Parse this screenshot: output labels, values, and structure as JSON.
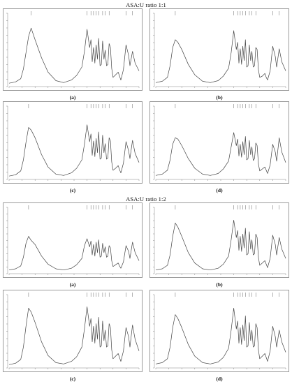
{
  "sections": [
    {
      "title": "ASA:U ratio 1:1"
    },
    {
      "title": "ASA:U ratio 1:2"
    }
  ],
  "panel_labels": [
    "(a)",
    "(b)",
    "(c)",
    "(d)"
  ],
  "colors": {
    "trace": "#444444",
    "frame": "#9a9a9a",
    "tick": "#666666"
  },
  "chart_data": [
    {
      "type": "line",
      "section": "ASA:U ratio 1:1",
      "label": "(a)",
      "x": [
        0.0,
        0.05,
        0.09,
        0.11,
        0.13,
        0.15,
        0.17,
        0.2,
        0.25,
        0.3,
        0.36,
        0.42,
        0.48,
        0.52,
        0.56,
        0.58,
        0.6,
        0.62,
        0.63,
        0.64,
        0.65,
        0.66,
        0.67,
        0.68,
        0.69,
        0.7,
        0.71,
        0.72,
        0.73,
        0.74,
        0.75,
        0.76,
        0.77,
        0.78,
        0.79,
        0.8,
        0.82,
        0.84,
        0.85,
        0.86,
        0.88,
        0.9,
        0.92,
        0.93,
        0.95,
        0.97,
        1.0
      ],
      "y": [
        0.03,
        0.05,
        0.1,
        0.25,
        0.5,
        0.75,
        0.88,
        0.7,
        0.42,
        0.2,
        0.07,
        0.04,
        0.08,
        0.15,
        0.28,
        0.52,
        0.86,
        0.58,
        0.7,
        0.36,
        0.58,
        0.34,
        0.62,
        0.4,
        0.72,
        0.3,
        0.32,
        0.68,
        0.4,
        0.54,
        0.3,
        0.32,
        0.64,
        0.58,
        0.26,
        0.12,
        0.16,
        0.2,
        0.14,
        0.08,
        0.24,
        0.62,
        0.46,
        0.3,
        0.52,
        0.34,
        0.22
      ]
    },
    {
      "type": "line",
      "section": "ASA:U ratio 1:1",
      "label": "(b)",
      "x": [
        0.0,
        0.05,
        0.09,
        0.11,
        0.13,
        0.15,
        0.17,
        0.2,
        0.25,
        0.3,
        0.36,
        0.42,
        0.48,
        0.52,
        0.56,
        0.58,
        0.6,
        0.62,
        0.63,
        0.64,
        0.65,
        0.66,
        0.67,
        0.68,
        0.69,
        0.7,
        0.71,
        0.72,
        0.73,
        0.74,
        0.75,
        0.76,
        0.77,
        0.78,
        0.79,
        0.8,
        0.82,
        0.84,
        0.85,
        0.86,
        0.88,
        0.9,
        0.92,
        0.93,
        0.95,
        0.97,
        1.0
      ],
      "y": [
        0.04,
        0.06,
        0.12,
        0.3,
        0.58,
        0.7,
        0.66,
        0.55,
        0.32,
        0.16,
        0.06,
        0.04,
        0.07,
        0.14,
        0.26,
        0.5,
        0.84,
        0.55,
        0.66,
        0.34,
        0.56,
        0.32,
        0.6,
        0.38,
        0.7,
        0.28,
        0.3,
        0.62,
        0.38,
        0.52,
        0.28,
        0.3,
        0.58,
        0.55,
        0.24,
        0.12,
        0.14,
        0.18,
        0.12,
        0.08,
        0.22,
        0.6,
        0.44,
        0.28,
        0.56,
        0.36,
        0.22
      ]
    },
    {
      "type": "line",
      "section": "ASA:U ratio 1:1",
      "label": "(c)",
      "x": [
        0.0,
        0.05,
        0.09,
        0.11,
        0.13,
        0.15,
        0.17,
        0.2,
        0.25,
        0.3,
        0.36,
        0.42,
        0.48,
        0.52,
        0.56,
        0.58,
        0.6,
        0.62,
        0.63,
        0.64,
        0.65,
        0.66,
        0.67,
        0.68,
        0.69,
        0.7,
        0.71,
        0.72,
        0.73,
        0.74,
        0.75,
        0.76,
        0.77,
        0.78,
        0.79,
        0.8,
        0.82,
        0.84,
        0.85,
        0.86,
        0.88,
        0.9,
        0.92,
        0.93,
        0.95,
        0.97,
        1.0
      ],
      "y": [
        0.03,
        0.05,
        0.11,
        0.28,
        0.55,
        0.78,
        0.74,
        0.62,
        0.36,
        0.17,
        0.06,
        0.04,
        0.08,
        0.15,
        0.28,
        0.52,
        0.82,
        0.56,
        0.68,
        0.35,
        0.57,
        0.33,
        0.61,
        0.39,
        0.71,
        0.29,
        0.31,
        0.66,
        0.39,
        0.53,
        0.29,
        0.31,
        0.62,
        0.57,
        0.25,
        0.12,
        0.15,
        0.19,
        0.13,
        0.08,
        0.23,
        0.56,
        0.42,
        0.3,
        0.58,
        0.38,
        0.24
      ]
    },
    {
      "type": "line",
      "section": "ASA:U ratio 1:1",
      "label": "(d)",
      "x": [
        0.0,
        0.05,
        0.09,
        0.11,
        0.13,
        0.15,
        0.17,
        0.2,
        0.25,
        0.3,
        0.36,
        0.42,
        0.48,
        0.52,
        0.56,
        0.58,
        0.6,
        0.62,
        0.63,
        0.64,
        0.65,
        0.66,
        0.67,
        0.68,
        0.69,
        0.7,
        0.71,
        0.72,
        0.73,
        0.74,
        0.75,
        0.76,
        0.77,
        0.78,
        0.79,
        0.8,
        0.82,
        0.84,
        0.85,
        0.86,
        0.88,
        0.9,
        0.92,
        0.93,
        0.95,
        0.97,
        1.0
      ],
      "y": [
        0.04,
        0.06,
        0.12,
        0.28,
        0.52,
        0.62,
        0.6,
        0.5,
        0.3,
        0.15,
        0.06,
        0.04,
        0.07,
        0.14,
        0.26,
        0.48,
        0.7,
        0.5,
        0.6,
        0.34,
        0.52,
        0.32,
        0.56,
        0.36,
        0.64,
        0.28,
        0.3,
        0.58,
        0.36,
        0.48,
        0.27,
        0.3,
        0.54,
        0.5,
        0.22,
        0.11,
        0.14,
        0.17,
        0.12,
        0.07,
        0.2,
        0.52,
        0.4,
        0.26,
        0.62,
        0.4,
        0.24
      ]
    },
    {
      "type": "line",
      "section": "ASA:U ratio 1:2",
      "label": "(a)",
      "x": [
        0.0,
        0.05,
        0.09,
        0.11,
        0.13,
        0.15,
        0.17,
        0.2,
        0.25,
        0.3,
        0.36,
        0.42,
        0.48,
        0.52,
        0.56,
        0.58,
        0.6,
        0.62,
        0.63,
        0.64,
        0.65,
        0.66,
        0.67,
        0.68,
        0.69,
        0.7,
        0.71,
        0.72,
        0.73,
        0.74,
        0.75,
        0.76,
        0.77,
        0.78,
        0.79,
        0.8,
        0.82,
        0.84,
        0.85,
        0.86,
        0.88,
        0.9,
        0.92,
        0.93,
        0.95,
        0.97,
        1.0
      ],
      "y": [
        0.04,
        0.06,
        0.11,
        0.26,
        0.5,
        0.62,
        0.55,
        0.48,
        0.28,
        0.14,
        0.06,
        0.04,
        0.07,
        0.13,
        0.24,
        0.46,
        0.58,
        0.44,
        0.54,
        0.3,
        0.48,
        0.28,
        0.52,
        0.34,
        0.56,
        0.26,
        0.28,
        0.5,
        0.34,
        0.44,
        0.26,
        0.28,
        0.46,
        0.42,
        0.2,
        0.1,
        0.13,
        0.16,
        0.11,
        0.07,
        0.18,
        0.46,
        0.36,
        0.24,
        0.52,
        0.34,
        0.2
      ]
    },
    {
      "type": "line",
      "section": "ASA:U ratio 1:2",
      "label": "(b)",
      "x": [
        0.0,
        0.05,
        0.09,
        0.11,
        0.13,
        0.15,
        0.17,
        0.2,
        0.25,
        0.3,
        0.36,
        0.42,
        0.48,
        0.52,
        0.56,
        0.58,
        0.6,
        0.62,
        0.63,
        0.64,
        0.65,
        0.66,
        0.67,
        0.68,
        0.69,
        0.7,
        0.71,
        0.72,
        0.73,
        0.74,
        0.75,
        0.76,
        0.77,
        0.78,
        0.79,
        0.8,
        0.82,
        0.84,
        0.85,
        0.86,
        0.88,
        0.9,
        0.92,
        0.93,
        0.95,
        0.97,
        1.0
      ],
      "y": [
        0.04,
        0.06,
        0.12,
        0.3,
        0.62,
        0.85,
        0.78,
        0.62,
        0.34,
        0.16,
        0.06,
        0.04,
        0.07,
        0.14,
        0.28,
        0.56,
        0.9,
        0.6,
        0.72,
        0.38,
        0.62,
        0.36,
        0.66,
        0.42,
        0.76,
        0.3,
        0.32,
        0.7,
        0.4,
        0.56,
        0.3,
        0.32,
        0.66,
        0.6,
        0.26,
        0.12,
        0.16,
        0.2,
        0.14,
        0.08,
        0.24,
        0.64,
        0.48,
        0.3,
        0.6,
        0.4,
        0.24
      ]
    },
    {
      "type": "line",
      "section": "ASA:U ratio 1:2",
      "label": "(c)",
      "x": [
        0.0,
        0.05,
        0.09,
        0.11,
        0.13,
        0.15,
        0.17,
        0.2,
        0.25,
        0.3,
        0.36,
        0.42,
        0.48,
        0.52,
        0.56,
        0.58,
        0.6,
        0.62,
        0.63,
        0.64,
        0.65,
        0.66,
        0.67,
        0.68,
        0.69,
        0.7,
        0.71,
        0.72,
        0.73,
        0.74,
        0.75,
        0.76,
        0.77,
        0.78,
        0.79,
        0.8,
        0.82,
        0.84,
        0.85,
        0.86,
        0.88,
        0.9,
        0.92,
        0.93,
        0.95,
        0.97,
        1.0
      ],
      "y": [
        0.03,
        0.05,
        0.11,
        0.3,
        0.62,
        0.9,
        0.84,
        0.68,
        0.38,
        0.17,
        0.06,
        0.04,
        0.08,
        0.15,
        0.3,
        0.58,
        0.92,
        0.62,
        0.74,
        0.38,
        0.62,
        0.36,
        0.66,
        0.42,
        0.76,
        0.3,
        0.32,
        0.7,
        0.4,
        0.56,
        0.3,
        0.32,
        0.66,
        0.6,
        0.26,
        0.12,
        0.16,
        0.2,
        0.14,
        0.08,
        0.24,
        0.6,
        0.46,
        0.3,
        0.64,
        0.42,
        0.24
      ]
    },
    {
      "type": "line",
      "section": "ASA:U ratio 1:2",
      "label": "(d)",
      "x": [
        0.0,
        0.05,
        0.09,
        0.11,
        0.13,
        0.15,
        0.17,
        0.2,
        0.25,
        0.3,
        0.36,
        0.42,
        0.48,
        0.52,
        0.56,
        0.58,
        0.6,
        0.62,
        0.63,
        0.64,
        0.65,
        0.66,
        0.67,
        0.68,
        0.69,
        0.7,
        0.71,
        0.72,
        0.73,
        0.74,
        0.75,
        0.76,
        0.77,
        0.78,
        0.79,
        0.8,
        0.82,
        0.84,
        0.85,
        0.86,
        0.88,
        0.9,
        0.92,
        0.93,
        0.95,
        0.97,
        1.0
      ],
      "y": [
        0.04,
        0.06,
        0.12,
        0.3,
        0.6,
        0.8,
        0.74,
        0.6,
        0.34,
        0.16,
        0.06,
        0.04,
        0.07,
        0.14,
        0.28,
        0.56,
        0.9,
        0.58,
        0.7,
        0.36,
        0.6,
        0.34,
        0.64,
        0.4,
        0.78,
        0.3,
        0.32,
        0.68,
        0.4,
        0.56,
        0.3,
        0.32,
        0.66,
        0.6,
        0.26,
        0.12,
        0.16,
        0.2,
        0.14,
        0.08,
        0.24,
        0.62,
        0.46,
        0.3,
        0.56,
        0.38,
        0.22
      ]
    }
  ]
}
